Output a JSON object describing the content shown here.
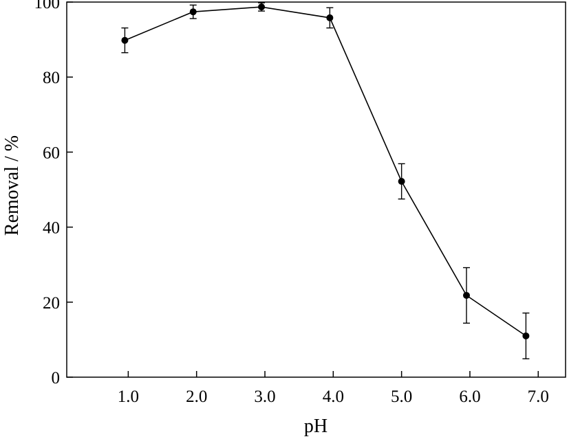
{
  "chart_data": {
    "type": "line",
    "title": "",
    "xlabel": "pH",
    "ylabel": "Removal / %",
    "xlim": [
      0.1,
      7.4
    ],
    "ylim": [
      0,
      100
    ],
    "xticks": [
      1.0,
      2.0,
      3.0,
      4.0,
      5.0,
      6.0,
      7.0
    ],
    "xtick_labels": [
      "1.0",
      "2.0",
      "3.0",
      "4.0",
      "5.0",
      "6.0",
      "7.0"
    ],
    "yticks": [
      0,
      20,
      40,
      60,
      80,
      100
    ],
    "ytick_labels": [
      "0",
      "20",
      "40",
      "60",
      "80",
      "100"
    ],
    "grid": false,
    "legend": "none",
    "series": [
      {
        "color": "#000000",
        "marker": "filled-circle",
        "x": [
          0.95,
          1.95,
          2.95,
          3.95,
          5.0,
          5.95,
          6.82
        ],
        "y": [
          89.8,
          97.4,
          98.7,
          95.8,
          52.2,
          21.8,
          11.0
        ],
        "error": [
          3.3,
          1.8,
          1.1,
          2.7,
          4.7,
          7.4,
          6.1
        ]
      }
    ]
  }
}
